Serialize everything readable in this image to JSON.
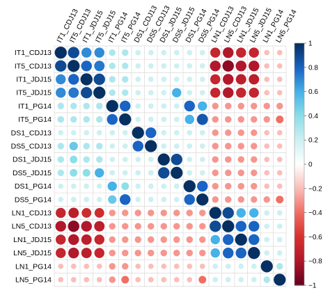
{
  "chart_data": {
    "type": "heatmap",
    "title": "",
    "labels": [
      "IT1_CDJ13",
      "IT5_CDJ13",
      "IT1_JDJ15",
      "IT5_JDJ15",
      "IT1_PG14",
      "IT5_PG14",
      "DS1_CDJ13",
      "DS5_CDJ13",
      "DS1_JDJ15",
      "DS5_JDJ15",
      "DS1_PG14",
      "DS5_PG14",
      "LN1_CDJ13",
      "LN5_CDJ13",
      "LN1_JDJ15",
      "LN5_JDJ15",
      "LN1_PG14",
      "LN5_PG14"
    ],
    "colorbar": {
      "range": [
        -1,
        1
      ],
      "ticks": [
        1,
        0.8,
        0.6,
        0.4,
        0.2,
        0,
        -0.2,
        -0.4,
        -0.6,
        -0.8,
        -1
      ],
      "tick_labels": [
        "1",
        "0.8",
        "0.6",
        "0.4",
        "0.2",
        "0",
        "−0.2",
        "−0.4",
        "−0.6",
        "−0.8",
        "−1"
      ],
      "colors": {
        "negative": "#67001F",
        "zero": "#FFFFFF",
        "positive": "#053061"
      }
    },
    "matrix": [
      [
        1,
        0.9,
        0.7,
        0.7,
        0.3,
        0.3,
        0.2,
        0.2,
        0.2,
        0.2,
        0.2,
        0.2,
        -0.7,
        -0.8,
        -0.7,
        -0.7,
        -0.2,
        -0.2
      ],
      [
        0.9,
        1,
        0.8,
        0.75,
        0.3,
        0.3,
        0.2,
        0.2,
        0.2,
        0.2,
        0.2,
        0.2,
        -0.8,
        -0.9,
        -0.8,
        -0.8,
        -0.2,
        -0.2
      ],
      [
        0.7,
        0.8,
        1,
        0.9,
        0.3,
        0.3,
        0.2,
        0.2,
        0.2,
        0.2,
        0.2,
        0.2,
        -0.7,
        -0.8,
        -0.75,
        -0.75,
        -0.2,
        -0.2
      ],
      [
        0.7,
        0.75,
        0.9,
        1,
        0.3,
        0.3,
        0.2,
        0.2,
        0.2,
        0.6,
        0.2,
        0.2,
        -0.7,
        -0.8,
        -0.7,
        -0.7,
        -0.2,
        -0.2
      ],
      [
        0.3,
        0.3,
        0.3,
        0.3,
        1,
        0.8,
        0.2,
        0.2,
        0.2,
        0.2,
        0.8,
        0.6,
        -0.3,
        -0.3,
        -0.3,
        -0.3,
        -0.3,
        -0.3
      ],
      [
        0.3,
        0.3,
        0.3,
        0.3,
        0.8,
        1,
        0.2,
        0.2,
        0.2,
        0.2,
        0.6,
        0.85,
        -0.3,
        -0.3,
        -0.3,
        -0.3,
        -0.3,
        -0.4
      ],
      [
        0.2,
        0.2,
        0.2,
        0.2,
        0.2,
        0.2,
        1,
        0.8,
        0.2,
        0.2,
        0.2,
        0.2,
        -0.3,
        -0.3,
        -0.3,
        -0.3,
        -0.2,
        -0.2
      ],
      [
        0.3,
        0.5,
        0.3,
        0.3,
        0.2,
        0.2,
        0.8,
        1,
        0.2,
        0.2,
        0.2,
        0.2,
        -0.3,
        -0.3,
        -0.3,
        -0.3,
        -0.2,
        -0.2
      ],
      [
        0.3,
        0.4,
        0.3,
        0.3,
        0.2,
        0.2,
        0.2,
        0.2,
        1,
        0.9,
        0.2,
        0.2,
        -0.3,
        -0.3,
        -0.3,
        -0.3,
        -0.2,
        -0.2
      ],
      [
        0.3,
        0.4,
        0.4,
        0.6,
        0.2,
        0.2,
        0.2,
        0.2,
        0.9,
        1,
        0.2,
        0.2,
        -0.3,
        -0.3,
        -0.3,
        -0.3,
        -0.2,
        -0.2
      ],
      [
        0.2,
        0.2,
        0.2,
        0.2,
        0.6,
        0.4,
        0.2,
        0.2,
        0.2,
        0.2,
        1,
        0.8,
        -0.3,
        -0.3,
        -0.3,
        -0.3,
        -0.2,
        -0.2
      ],
      [
        0.2,
        0.2,
        0.2,
        0.2,
        0.5,
        0.8,
        0.2,
        0.2,
        0.2,
        0.2,
        0.8,
        1,
        -0.3,
        -0.3,
        -0.3,
        -0.3,
        -0.3,
        -0.4
      ],
      [
        -0.7,
        -0.75,
        -0.65,
        -0.65,
        -0.3,
        -0.3,
        -0.3,
        -0.3,
        -0.3,
        -0.3,
        -0.3,
        -0.3,
        1,
        0.9,
        0.6,
        0.6,
        0.2,
        0.2
      ],
      [
        -0.8,
        -0.9,
        -0.8,
        -0.75,
        -0.3,
        -0.3,
        -0.3,
        -0.3,
        -0.3,
        -0.3,
        -0.3,
        -0.3,
        0.9,
        1,
        0.8,
        0.8,
        0.2,
        0.2
      ],
      [
        -0.7,
        -0.8,
        -0.75,
        -0.7,
        -0.3,
        -0.3,
        -0.3,
        -0.3,
        -0.3,
        -0.3,
        -0.3,
        -0.3,
        0.6,
        0.8,
        1,
        0.8,
        0.2,
        0.2
      ],
      [
        -0.7,
        -0.8,
        -0.75,
        -0.7,
        -0.3,
        -0.3,
        -0.3,
        -0.3,
        -0.3,
        -0.3,
        -0.3,
        -0.3,
        0.6,
        0.8,
        0.8,
        1,
        0.2,
        0.2
      ],
      [
        -0.2,
        -0.2,
        -0.2,
        -0.2,
        -0.3,
        -0.3,
        -0.2,
        -0.2,
        -0.2,
        -0.2,
        -0.2,
        -0.2,
        0.2,
        0.2,
        0.2,
        0.2,
        1,
        0.3
      ],
      [
        -0.2,
        -0.2,
        -0.2,
        -0.2,
        -0.3,
        -0.4,
        -0.2,
        -0.2,
        -0.2,
        -0.2,
        -0.2,
        -0.4,
        0.2,
        0.2,
        0.2,
        0.2,
        0.3,
        1
      ]
    ]
  }
}
